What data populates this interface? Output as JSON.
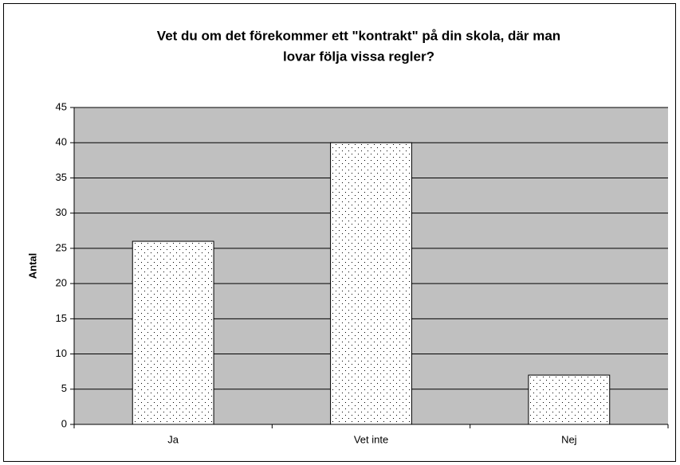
{
  "chart_data": {
    "type": "bar",
    "title": [
      "Vet du om det förekommer ett \"kontrakt\" på din skola, där man",
      "lovar följa vissa regler?"
    ],
    "ylabel": "Antal",
    "categories": [
      "Ja",
      "Vet inte",
      "Nej"
    ],
    "values": [
      26,
      40,
      7
    ],
    "color": "#ffffff",
    "plot_background": "#c0c0c0",
    "ylim": [
      0,
      45
    ],
    "yticks": [
      0,
      5,
      10,
      15,
      20,
      25,
      30,
      35,
      40,
      45
    ],
    "grid": true
  }
}
